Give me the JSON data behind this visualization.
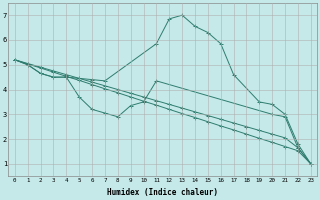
{
  "xlabel": "Humidex (Indice chaleur)",
  "bg_color": "#c5e8e8",
  "grid_color": "#b0b0b0",
  "line_color": "#2e7d6e",
  "xlim": [
    -0.5,
    23.5
  ],
  "ylim": [
    0.5,
    7.5
  ],
  "xticks": [
    0,
    1,
    2,
    3,
    4,
    5,
    6,
    7,
    8,
    9,
    10,
    11,
    12,
    13,
    14,
    15,
    16,
    17,
    18,
    19,
    20,
    21,
    22,
    23
  ],
  "yticks": [
    1,
    2,
    3,
    4,
    5,
    6,
    7
  ],
  "series": [
    {
      "x": [
        0,
        1,
        2,
        3,
        4,
        5,
        6,
        7,
        11,
        12,
        13,
        14,
        15,
        16,
        17,
        19,
        20,
        21,
        22,
        23
      ],
      "y": [
        5.2,
        5.0,
        4.65,
        4.5,
        4.5,
        4.45,
        4.4,
        4.35,
        5.85,
        6.85,
        7.0,
        6.55,
        6.3,
        5.85,
        4.6,
        3.5,
        3.4,
        3.0,
        1.8,
        1.0
      ]
    },
    {
      "x": [
        0,
        1,
        2,
        3,
        4,
        5,
        6,
        7,
        8,
        9,
        10,
        11,
        20,
        21,
        22,
        23
      ],
      "y": [
        5.2,
        5.0,
        4.65,
        4.5,
        4.5,
        3.7,
        3.2,
        3.05,
        2.9,
        3.35,
        3.5,
        4.35,
        3.0,
        2.9,
        1.65,
        1.0
      ]
    },
    {
      "x": [
        0,
        1,
        2,
        3,
        4,
        5,
        6,
        7,
        8,
        9,
        10,
        11,
        12,
        13,
        14,
        15,
        16,
        17,
        18,
        19,
        20,
        21,
        22,
        23
      ],
      "y": [
        5.2,
        5.03,
        4.87,
        4.7,
        4.53,
        4.37,
        4.2,
        4.03,
        3.87,
        3.7,
        3.53,
        3.37,
        3.2,
        3.03,
        2.87,
        2.7,
        2.53,
        2.37,
        2.2,
        2.03,
        1.87,
        1.7,
        1.53,
        1.0
      ]
    },
    {
      "x": [
        0,
        1,
        2,
        3,
        4,
        5,
        6,
        7,
        8,
        9,
        10,
        11,
        12,
        13,
        14,
        15,
        16,
        17,
        18,
        19,
        20,
        21,
        22,
        23
      ],
      "y": [
        5.2,
        5.05,
        4.9,
        4.75,
        4.6,
        4.45,
        4.3,
        4.15,
        4.0,
        3.85,
        3.7,
        3.55,
        3.4,
        3.25,
        3.1,
        2.95,
        2.8,
        2.65,
        2.5,
        2.35,
        2.2,
        2.05,
        1.65,
        1.0
      ]
    }
  ]
}
